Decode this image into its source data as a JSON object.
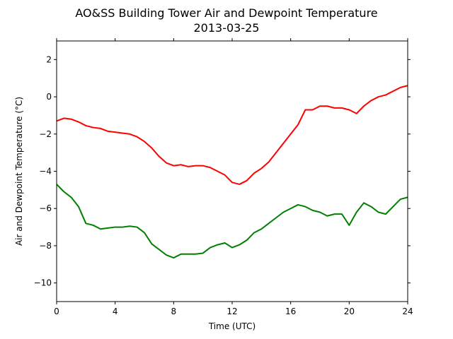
{
  "chart_data": {
    "type": "line",
    "title": "AO&SS Building Tower Air and Dewpoint Temperature",
    "subtitle": "2013-03-25",
    "xlabel": "Time (UTC)",
    "ylabel": "Air and Dewpoint Temperature (°C)",
    "xlim": [
      0,
      24
    ],
    "ylim": [
      -11,
      3
    ],
    "x_ticks": [
      0,
      4,
      8,
      12,
      16,
      20,
      24
    ],
    "y_ticks": [
      2,
      0,
      -2,
      -4,
      -6,
      -8,
      -10
    ],
    "x_tick_labels": [
      "0",
      "4",
      "8",
      "12",
      "16",
      "20",
      "24"
    ],
    "y_tick_labels": [
      "2",
      "0",
      "−2",
      "−4",
      "−6",
      "−8",
      "−10"
    ],
    "grid": false,
    "legend": "none",
    "series": [
      {
        "color": "#ff0000",
        "x": [
          0,
          0.5,
          1,
          1.5,
          2,
          2.5,
          3,
          3.5,
          4,
          4.5,
          5,
          5.5,
          6,
          6.5,
          7,
          7.5,
          8,
          8.5,
          9,
          9.5,
          10,
          10.5,
          11,
          11.5,
          12,
          12.5,
          13,
          13.5,
          14,
          14.5,
          15,
          15.5,
          16,
          16.5,
          17,
          17.5,
          18,
          18.5,
          19,
          19.5,
          20,
          20.5,
          21,
          21.5,
          22,
          22.5,
          23,
          23.5,
          24
        ],
        "values": [
          -1.3,
          -1.15,
          -1.2,
          -1.35,
          -1.55,
          -1.65,
          -1.7,
          -1.85,
          -1.9,
          -1.95,
          -2.0,
          -2.15,
          -2.4,
          -2.75,
          -3.2,
          -3.55,
          -3.7,
          -3.65,
          -3.75,
          -3.7,
          -3.7,
          -3.8,
          -4.0,
          -4.2,
          -4.6,
          -4.7,
          -4.5,
          -4.1,
          -3.85,
          -3.5,
          -3.0,
          -2.5,
          -2.0,
          -1.5,
          -0.7,
          -0.7,
          -0.5,
          -0.5,
          -0.6,
          -0.6,
          -0.7,
          -0.9,
          -0.5,
          -0.2,
          0.0,
          0.1,
          0.3,
          0.5,
          0.6
        ]
      },
      {
        "color": "#008000",
        "x": [
          0,
          0.5,
          1,
          1.5,
          2,
          2.5,
          3,
          3.5,
          4,
          4.5,
          5,
          5.5,
          6,
          6.5,
          7,
          7.5,
          8,
          8.5,
          9,
          9.5,
          10,
          10.5,
          11,
          11.5,
          12,
          12.5,
          13,
          13.5,
          14,
          14.5,
          15,
          15.5,
          16,
          16.5,
          17,
          17.5,
          18,
          18.5,
          19,
          19.5,
          20,
          20.5,
          21,
          21.5,
          22,
          22.5,
          23,
          23.5,
          24
        ],
        "values": [
          -4.7,
          -5.1,
          -5.4,
          -5.9,
          -6.8,
          -6.9,
          -7.1,
          -7.05,
          -7.0,
          -7.0,
          -6.95,
          -7.0,
          -7.3,
          -7.9,
          -8.2,
          -8.5,
          -8.65,
          -8.45,
          -8.45,
          -8.45,
          -8.4,
          -8.1,
          -7.95,
          -7.85,
          -8.1,
          -7.95,
          -7.7,
          -7.3,
          -7.1,
          -6.8,
          -6.5,
          -6.2,
          -6.0,
          -5.8,
          -5.9,
          -6.1,
          -6.2,
          -6.4,
          -6.3,
          -6.3,
          -6.9,
          -6.2,
          -5.7,
          -5.9,
          -6.2,
          -6.3,
          -5.9,
          -5.5,
          -5.4
        ]
      }
    ]
  }
}
